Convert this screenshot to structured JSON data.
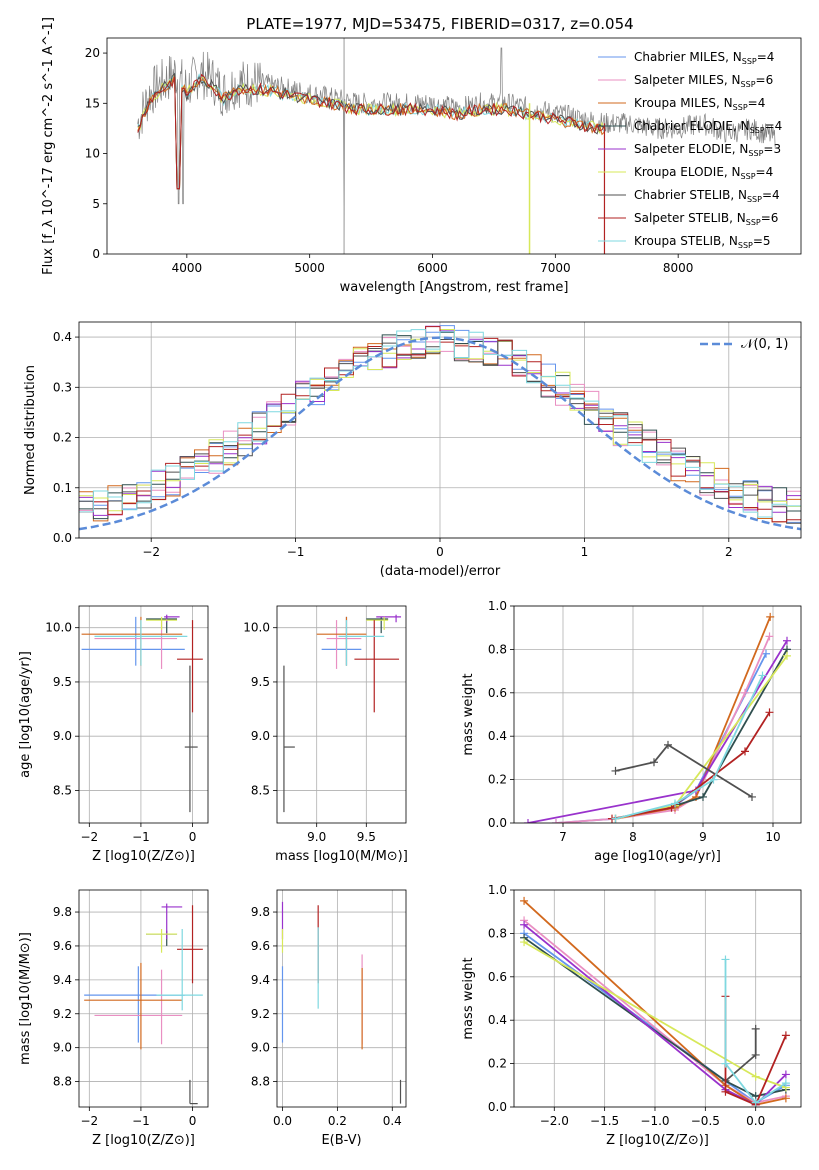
{
  "figure_title": "PLATE=1977, MJD=53475, FIBERID=0317, z=0.054",
  "colors": {
    "chabrier_miles": "#6495ed",
    "salpeter_miles": "#e98fc2",
    "kroupa_miles": "#d2691e",
    "chabrier_elodie": "#2f4f4f",
    "salpeter_elodie": "#9932cc",
    "kroupa_elodie": "#d7e85a",
    "chabrier_stelib": "#505050",
    "salpeter_stelib": "#b22222",
    "kroupa_stelib": "#7fd8e0",
    "observed": "#808080"
  },
  "legend_spectrum": [
    "Chabrier MILES, N_SSP=4",
    "Salpeter MILES, N_SSP=6",
    "Kroupa MILES, N_SSP=4",
    "Chabrier ELODIE, N_SSP=4",
    "Salpeter ELODIE, N_SSP=3",
    "Kroupa ELODIE, N_SSP=4",
    "Chabrier STELIB, N_SSP=4",
    "Salpeter STELIB, N_SSP=6",
    "Kroupa STELIB, N_SSP=5"
  ],
  "legend_hist": "𝒩(0, 1)",
  "chart_data": [
    {
      "type": "line",
      "title": "PLATE=1977, MJD=53475, FIBERID=0317, z=0.054",
      "xlabel": "wavelength [Angstrom, rest frame]",
      "ylabel": "Flux [f_λ 10^-17 erg cm^-2 s^-1 A^-1]",
      "xlim": [
        3350,
        9000
      ],
      "ylim": [
        0,
        21.5
      ],
      "xticks": [
        4000,
        5000,
        6000,
        7000,
        8000
      ],
      "yticks": [
        0,
        5,
        10,
        15,
        20
      ],
      "grid": false,
      "legend_position": "top-right",
      "series": [
        {
          "name": "observed",
          "x": [
            3600,
            3700,
            3800,
            3900,
            4000,
            4100,
            4200,
            4300,
            4400,
            4500,
            4600,
            4800,
            5000,
            5200,
            5400,
            5600,
            5800,
            6000,
            6200,
            6400,
            6600,
            6800,
            7000,
            7200,
            7400,
            7600,
            7800,
            8000,
            8200,
            8400,
            8600,
            8800
          ],
          "y": [
            13,
            16,
            17,
            18,
            16.5,
            18,
            17.5,
            16,
            17,
            17,
            17,
            16.5,
            16,
            15.5,
            15,
            15,
            15,
            15,
            14.5,
            15,
            15,
            14.5,
            14,
            13.5,
            13,
            13,
            12.5,
            12.5,
            13,
            12,
            12.5,
            11.5
          ]
        }
      ]
    },
    {
      "type": "line",
      "xlabel": "(data-model)/error",
      "ylabel": "Normed distribution",
      "xlim": [
        -2.5,
        2.5
      ],
      "ylim": [
        0,
        0.43
      ],
      "xticks": [
        -2,
        -1,
        0,
        1,
        2
      ],
      "yticks": [
        0.0,
        0.1,
        0.2,
        0.3,
        0.4
      ],
      "grid": true,
      "legend_position": "top-right",
      "series": [
        {
          "name": "𝒩(0, 1)",
          "function": "normal(0,1)"
        }
      ]
    },
    {
      "type": "scatter",
      "xlabel": "Z [log10(Z/Z⊙)]",
      "ylabel": "age [log10(age/yr)]",
      "xlim": [
        -2.2,
        0.3
      ],
      "ylim": [
        8.2,
        10.2
      ],
      "xticks": [
        -2,
        -1,
        0
      ],
      "yticks": [
        8.5,
        9.0,
        9.5,
        10.0
      ],
      "grid": true,
      "points": [
        {
          "c": "chabrier_miles",
          "x": -1.1,
          "y": 9.8,
          "x0": -2.15,
          "x1": -0.15,
          "y0": 9.65,
          "y1": 10.1
        },
        {
          "c": "salpeter_miles",
          "x": -0.6,
          "y": 9.9,
          "x0": -1.9,
          "x1": -0.3,
          "y0": 9.62,
          "y1": 10.07
        },
        {
          "c": "kroupa_miles",
          "x": -1.0,
          "y": 9.94,
          "x0": -2.15,
          "x1": -0.2,
          "y0": 9.65,
          "y1": 10.1
        },
        {
          "c": "chabrier_elodie",
          "x": -0.5,
          "y": 10.08,
          "x0": -0.9,
          "x1": -0.3,
          "y0": 9.95,
          "y1": 10.1
        },
        {
          "c": "salpeter_elodie",
          "x": -0.5,
          "y": 10.1,
          "x0": -0.55,
          "x1": -0.25,
          "y0": 10.05,
          "y1": 10.12
        },
        {
          "c": "kroupa_elodie",
          "x": -0.6,
          "y": 10.07,
          "x0": -0.9,
          "x1": -0.3,
          "y0": 9.98,
          "y1": 10.1
        },
        {
          "c": "chabrier_stelib",
          "x": -0.05,
          "y": 8.9,
          "x0": -0.15,
          "x1": 0.1,
          "y0": 8.3,
          "y1": 9.65
        },
        {
          "c": "salpeter_stelib",
          "x": 0.0,
          "y": 9.71,
          "x0": -0.3,
          "x1": 0.2,
          "y0": 9.22,
          "y1": 10.07
        },
        {
          "c": "kroupa_stelib",
          "x": -1.0,
          "y": 9.92,
          "x0": -1.9,
          "x1": -0.1,
          "y0": 9.65,
          "y1": 10.07
        }
      ]
    },
    {
      "type": "scatter",
      "xlabel": "mass [log10(M/M⊙)]",
      "xlim": [
        8.6,
        9.9
      ],
      "ylim": [
        8.2,
        10.2
      ],
      "xticks": [
        9.0,
        9.5
      ],
      "yticks": [
        8.5,
        9.0,
        9.5,
        10.0
      ],
      "grid": true,
      "points": [
        {
          "c": "chabrier_miles",
          "x": 9.3,
          "y": 9.8,
          "x0": 9.05,
          "x1": 9.45,
          "y0": 9.65,
          "y1": 10.1
        },
        {
          "c": "salpeter_miles",
          "x": 9.2,
          "y": 9.9,
          "x0": 9.1,
          "x1": 9.45,
          "y0": 9.62,
          "y1": 10.07
        },
        {
          "c": "kroupa_miles",
          "x": 9.3,
          "y": 9.94,
          "x0": 9.0,
          "x1": 9.5,
          "y0": 9.65,
          "y1": 10.1
        },
        {
          "c": "chabrier_elodie",
          "x": 9.65,
          "y": 10.08,
          "x0": 9.5,
          "x1": 9.72,
          "y0": 9.95,
          "y1": 10.1
        },
        {
          "c": "salpeter_elodie",
          "x": 9.8,
          "y": 10.1,
          "x0": 9.6,
          "x1": 9.85,
          "y0": 10.05,
          "y1": 10.12
        },
        {
          "c": "kroupa_elodie",
          "x": 9.68,
          "y": 10.07,
          "x0": 9.5,
          "x1": 9.72,
          "y0": 9.98,
          "y1": 10.1
        },
        {
          "c": "chabrier_stelib",
          "x": 8.67,
          "y": 8.9,
          "x0": 8.67,
          "x1": 8.78,
          "y0": 8.3,
          "y1": 9.65
        },
        {
          "c": "salpeter_stelib",
          "x": 9.58,
          "y": 9.71,
          "x0": 9.38,
          "x1": 9.83,
          "y0": 9.22,
          "y1": 10.07
        },
        {
          "c": "kroupa_stelib",
          "x": 9.3,
          "y": 9.92,
          "x0": 9.22,
          "x1": 9.68,
          "y0": 9.65,
          "y1": 10.07
        }
      ]
    },
    {
      "type": "line",
      "xlabel": "age [log10(age/yr)]",
      "ylabel": "mass weight",
      "xlim": [
        6.3,
        10.4
      ],
      "ylim": [
        0,
        1.0
      ],
      "xticks": [
        7,
        8,
        9,
        10
      ],
      "yticks": [
        0.0,
        0.2,
        0.4,
        0.6,
        0.8,
        1.0
      ],
      "grid": true,
      "series": [
        {
          "c": "chabrier_miles",
          "x": [
            6.9,
            7.75,
            8.6,
            8.9,
            9.9
          ],
          "y": [
            0.0,
            0.02,
            0.08,
            0.15,
            0.78
          ]
        },
        {
          "c": "salpeter_miles",
          "x": [
            6.9,
            7.75,
            8.6,
            8.9,
            9.6,
            9.95
          ],
          "y": [
            0.0,
            0.02,
            0.06,
            0.12,
            0.6,
            0.86
          ]
        },
        {
          "c": "kroupa_miles",
          "x": [
            7.75,
            8.6,
            8.9,
            9.96
          ],
          "y": [
            0.02,
            0.07,
            0.12,
            0.95
          ]
        },
        {
          "c": "chabrier_elodie",
          "x": [
            8.6,
            9.0,
            10.2
          ],
          "y": [
            0.08,
            0.12,
            0.8
          ]
        },
        {
          "c": "salpeter_elodie",
          "x": [
            6.5,
            8.9,
            10.2
          ],
          "y": [
            0.0,
            0.15,
            0.84
          ]
        },
        {
          "c": "kroupa_elodie",
          "x": [
            7.75,
            8.6,
            10.2
          ],
          "y": [
            0.02,
            0.08,
            0.77
          ]
        },
        {
          "c": "chabrier_stelib",
          "x": [
            7.75,
            8.3,
            8.5,
            9.7
          ],
          "y": [
            0.24,
            0.28,
            0.36,
            0.12
          ]
        },
        {
          "c": "salpeter_stelib",
          "x": [
            7.7,
            8.55,
            9.6,
            9.95
          ],
          "y": [
            0.02,
            0.07,
            0.33,
            0.51
          ]
        },
        {
          "c": "kroupa_stelib",
          "x": [
            7.75,
            8.6,
            9.15,
            9.85
          ],
          "y": [
            0.02,
            0.09,
            0.2,
            0.68
          ]
        }
      ]
    },
    {
      "type": "scatter",
      "xlabel": "Z [log10(Z/Z⊙)]",
      "ylabel": "mass [log10(M/M⊙)]",
      "xlim": [
        -2.2,
        0.3
      ],
      "ylim": [
        8.65,
        9.93
      ],
      "xticks": [
        -2,
        -1,
        0
      ],
      "yticks": [
        8.8,
        9.0,
        9.2,
        9.4,
        9.6,
        9.8
      ],
      "grid": true,
      "points": [
        {
          "c": "chabrier_miles",
          "x": -1.05,
          "y": 9.31,
          "x0": -2.1,
          "x1": -0.15,
          "y0": 9.03,
          "y1": 9.48
        },
        {
          "c": "salpeter_miles",
          "x": -0.6,
          "y": 9.19,
          "x0": -1.9,
          "x1": -0.2,
          "y0": 9.02,
          "y1": 9.46
        },
        {
          "c": "kroupa_miles",
          "x": -1.0,
          "y": 9.28,
          "x0": -2.1,
          "x1": -0.2,
          "y0": 8.99,
          "y1": 9.5
        },
        {
          "c": "chabrier_elodie",
          "x": -0.5,
          "y": 9.67,
          "x0": -0.9,
          "x1": -0.3,
          "y0": 9.6,
          "y1": 9.69
        },
        {
          "c": "salpeter_elodie",
          "x": -0.5,
          "y": 9.83,
          "x0": -0.6,
          "x1": -0.2,
          "y0": 9.64,
          "y1": 9.85
        },
        {
          "c": "kroupa_elodie",
          "x": -0.6,
          "y": 9.67,
          "x0": -0.9,
          "x1": -0.3,
          "y0": 9.56,
          "y1": 9.7
        },
        {
          "c": "chabrier_stelib",
          "x": -0.05,
          "y": 8.67,
          "x0": -0.05,
          "x1": 0.1,
          "y0": 8.67,
          "y1": 8.81
        },
        {
          "c": "salpeter_stelib",
          "x": 0.0,
          "y": 9.58,
          "x0": -0.3,
          "x1": 0.2,
          "y0": 9.38,
          "y1": 9.84
        },
        {
          "c": "kroupa_stelib",
          "x": -0.2,
          "y": 9.31,
          "x0": -0.7,
          "x1": 0.2,
          "y0": 9.22,
          "y1": 9.7
        }
      ]
    },
    {
      "type": "scatter",
      "xlabel": "E(B-V)",
      "xlim": [
        -0.02,
        0.45
      ],
      "ylim": [
        8.65,
        9.93
      ],
      "xticks": [
        0.0,
        0.2,
        0.4
      ],
      "yticks": [
        8.8,
        9.0,
        9.2,
        9.4,
        9.6,
        9.8
      ],
      "grid": true,
      "points": [
        {
          "c": "chabrier_miles",
          "x": 0.0,
          "y": 9.31,
          "y0": 9.03,
          "y1": 9.48
        },
        {
          "c": "salpeter_elodie",
          "x": 0.0,
          "y": 9.83,
          "y0": 9.64,
          "y1": 9.86
        },
        {
          "c": "kroupa_elodie",
          "x": 0.0,
          "y": 9.67,
          "y0": 9.56,
          "y1": 9.7
        },
        {
          "c": "salpeter_stelib",
          "x": 0.13,
          "y": 9.58,
          "y0": 9.38,
          "y1": 9.84
        },
        {
          "c": "kroupa_stelib",
          "x": 0.13,
          "y": 9.45,
          "y0": 9.23,
          "y1": 9.71
        },
        {
          "c": "salpeter_miles",
          "x": 0.29,
          "y": 9.19,
          "y0": 9.02,
          "y1": 9.55
        },
        {
          "c": "kroupa_miles",
          "x": 0.29,
          "y": 9.28,
          "y0": 8.99,
          "y1": 9.47
        },
        {
          "c": "chabrier_stelib",
          "x": 0.43,
          "y": 8.67,
          "y0": 8.67,
          "y1": 8.81
        }
      ]
    },
    {
      "type": "line",
      "xlabel": "Z [log10(Z/Z⊙)]",
      "ylabel": "mass weight",
      "xlim": [
        -2.4,
        0.45
      ],
      "ylim": [
        0,
        1.0
      ],
      "xticks": [
        -2.0,
        -1.5,
        -1.0,
        -0.5,
        0.0
      ],
      "yticks": [
        0.0,
        0.2,
        0.4,
        0.6,
        0.8,
        1.0
      ],
      "grid": true,
      "series": [
        {
          "c": "chabrier_miles",
          "x": [
            -2.3,
            -0.3,
            0.0,
            0.3
          ],
          "y": [
            0.8,
            0.12,
            0.02,
            0.1
          ]
        },
        {
          "c": "salpeter_miles",
          "x": [
            -2.3,
            -0.3,
            0.0,
            0.3
          ],
          "y": [
            0.86,
            0.1,
            0.02,
            0.05
          ]
        },
        {
          "c": "kroupa_miles",
          "x": [
            -2.3,
            -0.3,
            0.0,
            0.3
          ],
          "y": [
            0.95,
            0.1,
            0.01,
            0.04
          ]
        },
        {
          "c": "chabrier_elodie",
          "x": [
            -2.3,
            -0.3,
            0.0,
            0.3
          ],
          "y": [
            0.78,
            0.12,
            0.05,
            0.08
          ]
        },
        {
          "c": "salpeter_elodie",
          "x": [
            -2.3,
            -0.3,
            0.0,
            0.3
          ],
          "y": [
            0.84,
            0.08,
            0.01,
            0.15
          ]
        },
        {
          "c": "kroupa_elodie",
          "x": [
            -2.3,
            0.0,
            0.3
          ],
          "y": [
            0.76,
            0.14,
            0.09
          ]
        },
        {
          "c": "chabrier_stelib",
          "x": [
            -0.3,
            0.0,
            0.0
          ],
          "y": [
            0.12,
            0.24,
            0.36
          ]
        },
        {
          "c": "salpeter_stelib",
          "x": [
            -0.3,
            -0.3,
            0.0,
            0.3
          ],
          "y": [
            0.51,
            0.07,
            0.01,
            0.33
          ]
        },
        {
          "c": "kroupa_stelib",
          "x": [
            -0.3,
            -0.3,
            0.0,
            0.3
          ],
          "y": [
            0.68,
            0.2,
            0.02,
            0.11
          ]
        }
      ]
    }
  ]
}
